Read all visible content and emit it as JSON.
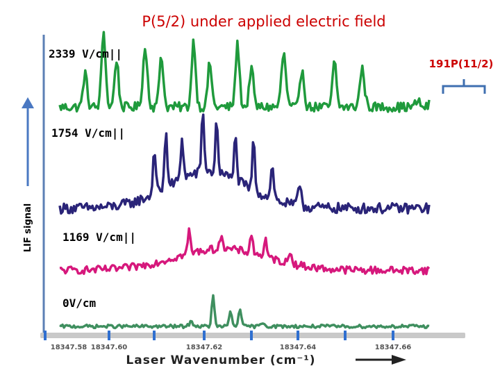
{
  "chart_data": {
    "type": "line",
    "title": "P(5/2) under applied electric field",
    "ylabel": "LIF signal",
    "xlabel": "Laser Wavenumber (cm⁻¹)",
    "xlim": [
      18347.58,
      18347.66
    ],
    "xticks": [
      "18347.58",
      "18347.60",
      "18347.62",
      "18347.64",
      "18347.66"
    ],
    "annotation": "191P(11/2)",
    "colors": {
      "axis": "#5b7fb5",
      "arrow": "#4a78c2",
      "tick": "#2f6fd0",
      "bracket": "#3f6fb0",
      "annotation": "#cc0000"
    },
    "series": [
      {
        "name": "2339 V/cm||",
        "color": "#1f9a3c",
        "baseline": 0.12,
        "noise": 0.06,
        "peaks": [
          {
            "x": 18347.5855,
            "h": 0.42,
            "w": 0.0006
          },
          {
            "x": 18347.5895,
            "h": 0.95,
            "w": 0.0006
          },
          {
            "x": 18347.5923,
            "h": 0.6,
            "w": 0.0006
          },
          {
            "x": 18347.5985,
            "h": 0.72,
            "w": 0.0007
          },
          {
            "x": 18347.602,
            "h": 0.66,
            "w": 0.0006
          },
          {
            "x": 18347.609,
            "h": 0.83,
            "w": 0.0006
          },
          {
            "x": 18347.6125,
            "h": 0.55,
            "w": 0.0006
          },
          {
            "x": 18347.6185,
            "h": 0.78,
            "w": 0.0006
          },
          {
            "x": 18347.6215,
            "h": 0.5,
            "w": 0.0006
          },
          {
            "x": 18347.6285,
            "h": 0.66,
            "w": 0.0007
          },
          {
            "x": 18347.6325,
            "h": 0.48,
            "w": 0.0006
          },
          {
            "x": 18347.6395,
            "h": 0.56,
            "w": 0.0006
          },
          {
            "x": 18347.6455,
            "h": 0.48,
            "w": 0.0007
          },
          {
            "x": 18347.6575,
            "h": 0.08,
            "w": 0.0006
          },
          {
            "x": 18347.6605,
            "h": 0.07,
            "w": 0.0006
          }
        ]
      },
      {
        "name": "1754 V/cm||",
        "color": "#2a2478",
        "baseline": 0.08,
        "noise": 0.05,
        "envelope": {
          "center": 18347.612,
          "width": 0.012,
          "h": 0.35
        },
        "peaks": [
          {
            "x": 18347.6005,
            "h": 0.45,
            "w": 0.0004
          },
          {
            "x": 18347.603,
            "h": 0.55,
            "w": 0.0004
          },
          {
            "x": 18347.6065,
            "h": 0.4,
            "w": 0.0004
          },
          {
            "x": 18347.611,
            "h": 0.6,
            "w": 0.0004
          },
          {
            "x": 18347.614,
            "h": 0.5,
            "w": 0.0004
          },
          {
            "x": 18347.618,
            "h": 0.42,
            "w": 0.0004
          },
          {
            "x": 18347.622,
            "h": 0.48,
            "w": 0.0004
          },
          {
            "x": 18347.626,
            "h": 0.3,
            "w": 0.0005
          },
          {
            "x": 18347.632,
            "h": 0.22,
            "w": 0.0005
          }
        ]
      },
      {
        "name": "1169 V/cm||",
        "color": "#d6187c",
        "baseline": 0.08,
        "noise": 0.05,
        "envelope": {
          "center": 18347.615,
          "width": 0.014,
          "h": 0.28
        },
        "peaks": [
          {
            "x": 18347.608,
            "h": 0.3,
            "w": 0.0004
          },
          {
            "x": 18347.615,
            "h": 0.22,
            "w": 0.0004
          },
          {
            "x": 18347.6215,
            "h": 0.26,
            "w": 0.0004
          },
          {
            "x": 18347.6245,
            "h": 0.22,
            "w": 0.0004
          },
          {
            "x": 18347.63,
            "h": 0.15,
            "w": 0.0005
          }
        ]
      },
      {
        "name": "0V/cm",
        "color": "#3f8f5f",
        "baseline": 0.05,
        "noise": 0.03,
        "peaks": [
          {
            "x": 18347.6132,
            "h": 0.55,
            "w": 0.0004
          },
          {
            "x": 18347.617,
            "h": 0.28,
            "w": 0.0004
          },
          {
            "x": 18347.619,
            "h": 0.34,
            "w": 0.0004
          },
          {
            "x": 18347.6085,
            "h": 0.08,
            "w": 0.0006
          },
          {
            "x": 18347.624,
            "h": 0.07,
            "w": 0.0006
          }
        ]
      }
    ]
  }
}
